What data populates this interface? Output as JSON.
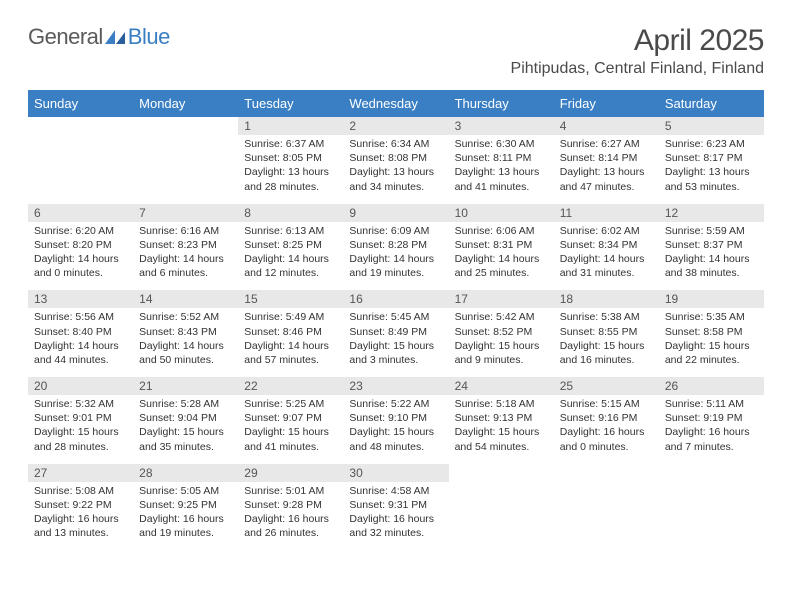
{
  "brand": {
    "part1": "General",
    "part2": "Blue"
  },
  "title": "April 2025",
  "location": "Pihtipudas, Central Finland, Finland",
  "day_headers": [
    "Sunday",
    "Monday",
    "Tuesday",
    "Wednesday",
    "Thursday",
    "Friday",
    "Saturday"
  ],
  "colors": {
    "header_bg": "#3a7fc4",
    "header_fg": "#ffffff",
    "daybar_bg": "#e8e8e8",
    "text": "#333333",
    "logo_gray": "#5a5a5a",
    "logo_blue": "#3a7fc4"
  },
  "font_sizes": {
    "title": 30,
    "subtitle": 16,
    "logo": 22,
    "th": 13,
    "daynum": 12,
    "body": 10.5
  },
  "weeks": [
    [
      null,
      null,
      {
        "n": "1",
        "sunrise": "6:37 AM",
        "sunset": "8:05 PM",
        "daylight": "13 hours and 28 minutes."
      },
      {
        "n": "2",
        "sunrise": "6:34 AM",
        "sunset": "8:08 PM",
        "daylight": "13 hours and 34 minutes."
      },
      {
        "n": "3",
        "sunrise": "6:30 AM",
        "sunset": "8:11 PM",
        "daylight": "13 hours and 41 minutes."
      },
      {
        "n": "4",
        "sunrise": "6:27 AM",
        "sunset": "8:14 PM",
        "daylight": "13 hours and 47 minutes."
      },
      {
        "n": "5",
        "sunrise": "6:23 AM",
        "sunset": "8:17 PM",
        "daylight": "13 hours and 53 minutes."
      }
    ],
    [
      {
        "n": "6",
        "sunrise": "6:20 AM",
        "sunset": "8:20 PM",
        "daylight": "14 hours and 0 minutes."
      },
      {
        "n": "7",
        "sunrise": "6:16 AM",
        "sunset": "8:23 PM",
        "daylight": "14 hours and 6 minutes."
      },
      {
        "n": "8",
        "sunrise": "6:13 AM",
        "sunset": "8:25 PM",
        "daylight": "14 hours and 12 minutes."
      },
      {
        "n": "9",
        "sunrise": "6:09 AM",
        "sunset": "8:28 PM",
        "daylight": "14 hours and 19 minutes."
      },
      {
        "n": "10",
        "sunrise": "6:06 AM",
        "sunset": "8:31 PM",
        "daylight": "14 hours and 25 minutes."
      },
      {
        "n": "11",
        "sunrise": "6:02 AM",
        "sunset": "8:34 PM",
        "daylight": "14 hours and 31 minutes."
      },
      {
        "n": "12",
        "sunrise": "5:59 AM",
        "sunset": "8:37 PM",
        "daylight": "14 hours and 38 minutes."
      }
    ],
    [
      {
        "n": "13",
        "sunrise": "5:56 AM",
        "sunset": "8:40 PM",
        "daylight": "14 hours and 44 minutes."
      },
      {
        "n": "14",
        "sunrise": "5:52 AM",
        "sunset": "8:43 PM",
        "daylight": "14 hours and 50 minutes."
      },
      {
        "n": "15",
        "sunrise": "5:49 AM",
        "sunset": "8:46 PM",
        "daylight": "14 hours and 57 minutes."
      },
      {
        "n": "16",
        "sunrise": "5:45 AM",
        "sunset": "8:49 PM",
        "daylight": "15 hours and 3 minutes."
      },
      {
        "n": "17",
        "sunrise": "5:42 AM",
        "sunset": "8:52 PM",
        "daylight": "15 hours and 9 minutes."
      },
      {
        "n": "18",
        "sunrise": "5:38 AM",
        "sunset": "8:55 PM",
        "daylight": "15 hours and 16 minutes."
      },
      {
        "n": "19",
        "sunrise": "5:35 AM",
        "sunset": "8:58 PM",
        "daylight": "15 hours and 22 minutes."
      }
    ],
    [
      {
        "n": "20",
        "sunrise": "5:32 AM",
        "sunset": "9:01 PM",
        "daylight": "15 hours and 28 minutes."
      },
      {
        "n": "21",
        "sunrise": "5:28 AM",
        "sunset": "9:04 PM",
        "daylight": "15 hours and 35 minutes."
      },
      {
        "n": "22",
        "sunrise": "5:25 AM",
        "sunset": "9:07 PM",
        "daylight": "15 hours and 41 minutes."
      },
      {
        "n": "23",
        "sunrise": "5:22 AM",
        "sunset": "9:10 PM",
        "daylight": "15 hours and 48 minutes."
      },
      {
        "n": "24",
        "sunrise": "5:18 AM",
        "sunset": "9:13 PM",
        "daylight": "15 hours and 54 minutes."
      },
      {
        "n": "25",
        "sunrise": "5:15 AM",
        "sunset": "9:16 PM",
        "daylight": "16 hours and 0 minutes."
      },
      {
        "n": "26",
        "sunrise": "5:11 AM",
        "sunset": "9:19 PM",
        "daylight": "16 hours and 7 minutes."
      }
    ],
    [
      {
        "n": "27",
        "sunrise": "5:08 AM",
        "sunset": "9:22 PM",
        "daylight": "16 hours and 13 minutes."
      },
      {
        "n": "28",
        "sunrise": "5:05 AM",
        "sunset": "9:25 PM",
        "daylight": "16 hours and 19 minutes."
      },
      {
        "n": "29",
        "sunrise": "5:01 AM",
        "sunset": "9:28 PM",
        "daylight": "16 hours and 26 minutes."
      },
      {
        "n": "30",
        "sunrise": "4:58 AM",
        "sunset": "9:31 PM",
        "daylight": "16 hours and 32 minutes."
      },
      null,
      null,
      null
    ]
  ]
}
